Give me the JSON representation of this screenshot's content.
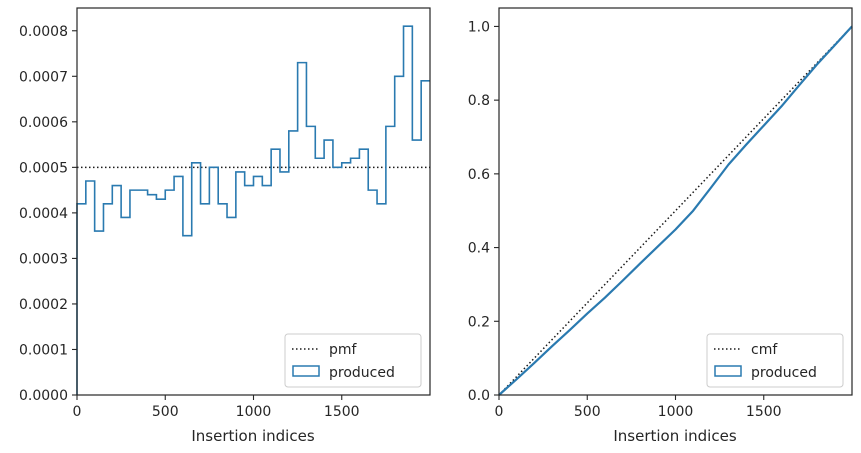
{
  "colors": {
    "step": "#2a7ab0",
    "reference": "#1a1a1a",
    "axes": "#262626",
    "legend_border": "#cccccc"
  },
  "chart_data": [
    {
      "type": "line",
      "xlabel": "Insertion indices",
      "ylabel": "",
      "xlim": [
        0,
        2000
      ],
      "ylim": [
        0,
        0.00085
      ],
      "xticks": [
        0,
        500,
        1000,
        1500
      ],
      "yticks": [
        0,
        0.0001,
        0.0002,
        0.0003,
        0.0004,
        0.0005,
        0.0006,
        0.0007,
        0.0008
      ],
      "ytick_labels": [
        "0.0000",
        "0.0001",
        "0.0002",
        "0.0003",
        "0.0004",
        "0.0005",
        "0.0006",
        "0.0007",
        "0.0008"
      ],
      "grid": false,
      "legend_position": "lower-right",
      "legend": [
        "pmf",
        "produced"
      ],
      "reference_value": 0.0005,
      "bin_edges": [
        0,
        50,
        100,
        150,
        200,
        250,
        300,
        350,
        400,
        450,
        500,
        550,
        600,
        650,
        700,
        750,
        800,
        850,
        900,
        950,
        1000,
        1050,
        1100,
        1150,
        1200,
        1250,
        1300,
        1350,
        1400,
        1450,
        1500,
        1550,
        1600,
        1650,
        1700,
        1750,
        1800,
        1850,
        1900,
        1950,
        2000
      ],
      "values": [
        0.00042,
        0.00047,
        0.00036,
        0.00042,
        0.00046,
        0.00039,
        0.00045,
        0.00045,
        0.00044,
        0.00043,
        0.00045,
        0.00048,
        0.00035,
        0.00051,
        0.00042,
        0.0005,
        0.00042,
        0.00039,
        0.00049,
        0.00046,
        0.00048,
        0.00046,
        0.00054,
        0.00049,
        0.00058,
        0.00073,
        0.00059,
        0.00052,
        0.00056,
        0.0005,
        0.00051,
        0.00052,
        0.00054,
        0.00045,
        0.00042,
        0.00059,
        0.0007,
        0.00081,
        0.00056,
        0.00069
      ]
    },
    {
      "type": "line",
      "xlabel": "Insertion indices",
      "ylabel": "",
      "xlim": [
        0,
        2000
      ],
      "ylim": [
        0,
        1.05
      ],
      "xticks": [
        0,
        500,
        1000,
        1500
      ],
      "yticks": [
        0.0,
        0.2,
        0.4,
        0.6,
        0.8,
        1.0
      ],
      "ytick_labels": [
        "0.0",
        "0.2",
        "0.4",
        "0.6",
        "0.8",
        "1.0"
      ],
      "grid": false,
      "legend_position": "lower-right",
      "legend": [
        "cmf",
        "produced"
      ],
      "reference_line": [
        [
          0,
          0
        ],
        [
          2000,
          1.0
        ]
      ],
      "x": [
        0,
        100,
        200,
        300,
        400,
        500,
        600,
        700,
        800,
        900,
        1000,
        1100,
        1200,
        1300,
        1400,
        1500,
        1600,
        1700,
        1800,
        1900,
        2000
      ],
      "values": [
        0,
        0.043,
        0.087,
        0.132,
        0.176,
        0.221,
        0.264,
        0.31,
        0.357,
        0.403,
        0.449,
        0.5,
        0.562,
        0.625,
        0.679,
        0.731,
        0.783,
        0.84,
        0.896,
        0.948,
        1.0
      ]
    }
  ]
}
